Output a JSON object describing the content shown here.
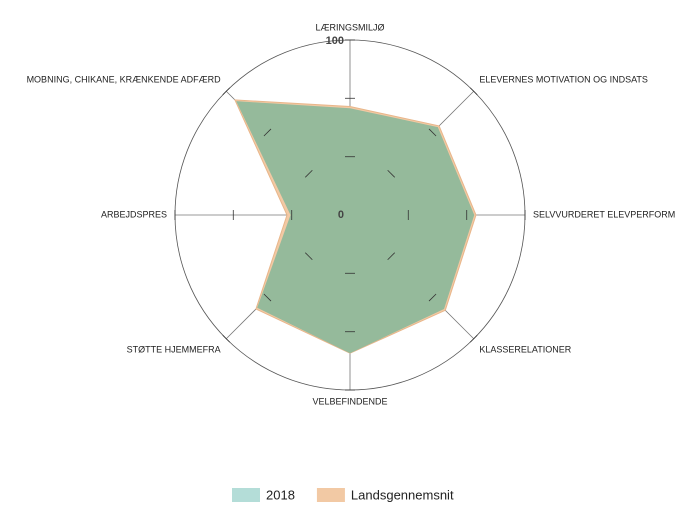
{
  "chart_data": {
    "type": "radar",
    "categories": [
      "LÆRINGSMILJØ",
      "ELEVERNES MOTIVATION OG INDSATS",
      "SELVVURDERET ELEVPERFORM",
      "KLASSERELATIONER",
      "VELBEFINDENDE",
      "STØTTE HJEMMEFRA",
      "ARBEJDSPRES",
      "MOBNING, CHIKANE, KRÆNKENDE ADFÆRD"
    ],
    "series": [
      {
        "name": "Landsgennemsnit",
        "color": "#f2c9a4",
        "values": [
          62,
          72,
          72,
          77,
          79,
          76,
          36,
          93
        ]
      },
      {
        "name": "2018",
        "color": "#b4ddd8",
        "values": [
          61,
          71,
          71,
          76,
          79,
          75,
          34,
          92
        ]
      }
    ],
    "ylim": [
      0,
      100
    ],
    "yticks": [
      0,
      100
    ],
    "minor_yticks": [
      33.3,
      66.7
    ],
    "legend": "bottom"
  }
}
